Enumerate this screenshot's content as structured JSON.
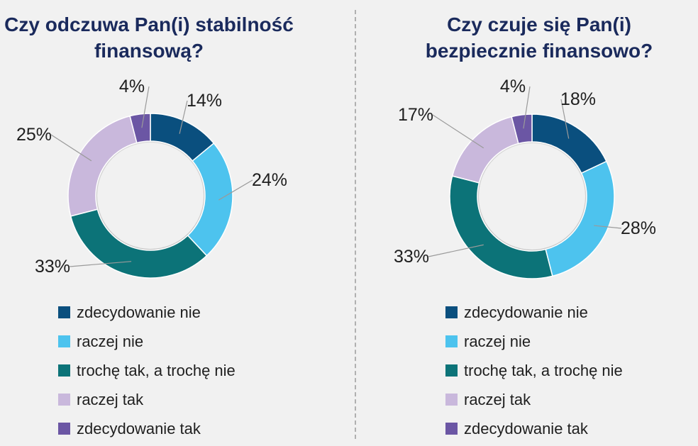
{
  "legend": [
    {
      "label": "zdecydowanie nie",
      "color": "#0a4f7e"
    },
    {
      "label": "raczej nie",
      "color": "#4dc3ee"
    },
    {
      "label": "trochę tak, a trochę nie",
      "color": "#0c7378"
    },
    {
      "label": "raczej tak",
      "color": "#c9b8dc"
    },
    {
      "label": "zdecydowanie tak",
      "color": "#6b56a4"
    }
  ],
  "chart_data": [
    {
      "type": "pie",
      "title": "Czy odczuwa Pan(i) stabilność finansową?",
      "categories": [
        "zdecydowanie nie",
        "raczej nie",
        "trochę tak, a trochę nie",
        "raczej tak",
        "zdecydowanie tak"
      ],
      "values": [
        14,
        24,
        33,
        25,
        4
      ],
      "labels": [
        "14%",
        "24%",
        "33%",
        "25%",
        "4%"
      ],
      "unit": "%",
      "colors": [
        "#0a4f7e",
        "#4dc3ee",
        "#0c7378",
        "#c9b8dc",
        "#6b56a4"
      ]
    },
    {
      "type": "pie",
      "title": "Czy czuje się Pan(i) bezpiecznie finansowo?",
      "categories": [
        "zdecydowanie nie",
        "raczej nie",
        "trochę tak, a trochę nie",
        "raczej tak",
        "zdecydowanie tak"
      ],
      "values": [
        18,
        28,
        33,
        17,
        4
      ],
      "labels": [
        "18%",
        "28%",
        "33%",
        "17%",
        "4%"
      ],
      "unit": "%",
      "colors": [
        "#0a4f7e",
        "#4dc3ee",
        "#0c7378",
        "#c9b8dc",
        "#6b56a4"
      ]
    }
  ]
}
